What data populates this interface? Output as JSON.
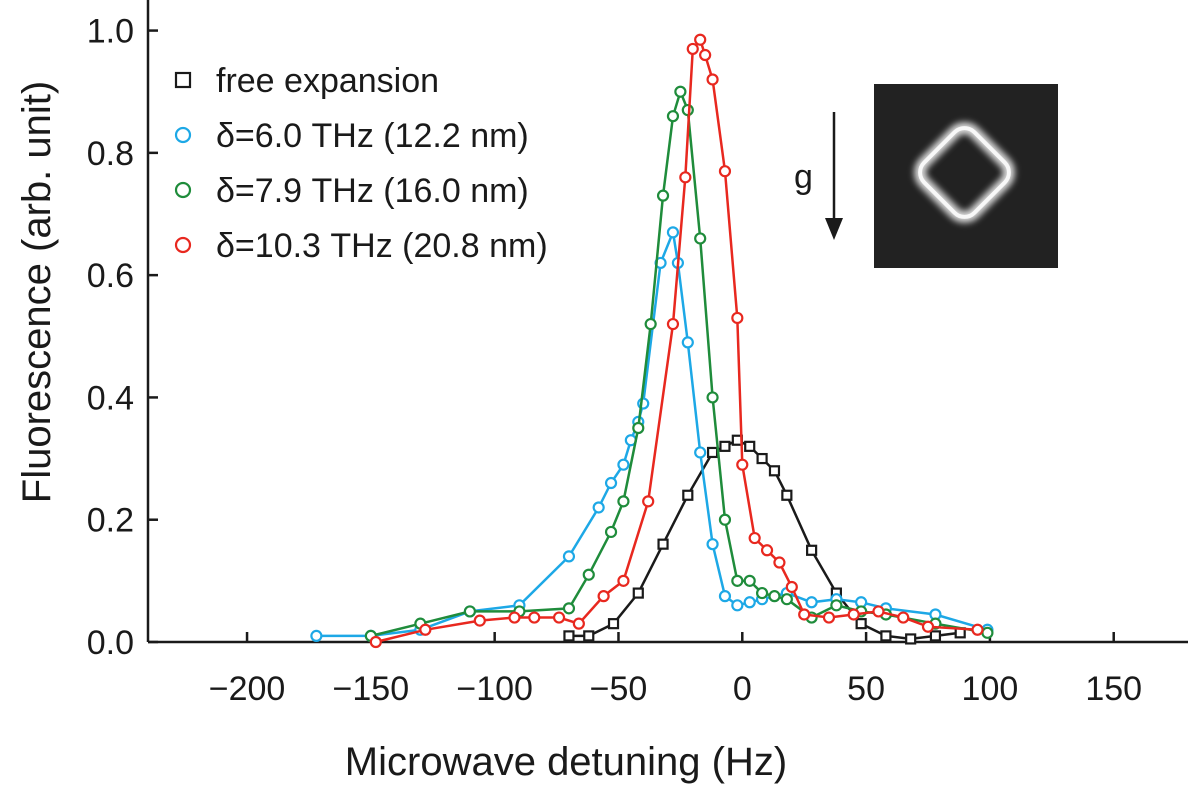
{
  "chart_data": {
    "type": "line",
    "xlabel": "Microwave detuning (Hz)",
    "ylabel": "Fluorescence (arb. unit)",
    "xlim": [
      -240,
      180
    ],
    "ylim": [
      0,
      1.05
    ],
    "x_ticks": [
      -200,
      -150,
      -100,
      -50,
      0,
      50,
      100,
      150
    ],
    "y_ticks": [
      0.0,
      0.2,
      0.4,
      0.6,
      0.8,
      1.0
    ],
    "x_tick_labels": [
      "−200",
      "−150",
      "−100",
      "−50",
      "0",
      "50",
      "100",
      "150"
    ],
    "y_tick_labels": [
      "0.0",
      "0.2",
      "0.4",
      "0.6",
      "0.8",
      "1.0"
    ],
    "legend_position": "top-left",
    "grid": false,
    "series": [
      {
        "name": "free expansion",
        "color": "#1a1a1a",
        "marker": "square",
        "points": [
          [
            -70,
            0.01
          ],
          [
            -62,
            0.01
          ],
          [
            -52,
            0.03
          ],
          [
            -42,
            0.08
          ],
          [
            -32,
            0.16
          ],
          [
            -22,
            0.24
          ],
          [
            -12,
            0.31
          ],
          [
            -7,
            0.32
          ],
          [
            -2,
            0.33
          ],
          [
            3,
            0.32
          ],
          [
            8,
            0.3
          ],
          [
            13,
            0.28
          ],
          [
            18,
            0.24
          ],
          [
            28,
            0.15
          ],
          [
            38,
            0.08
          ],
          [
            48,
            0.03
          ],
          [
            58,
            0.01
          ],
          [
            68,
            0.005
          ],
          [
            78,
            0.01
          ],
          [
            88,
            0.015
          ]
        ]
      },
      {
        "name": "δ=6.0 THz (12.2 nm)",
        "color": "#1da8e6",
        "marker": "circle",
        "points": [
          [
            -172,
            0.01
          ],
          [
            -150,
            0.01
          ],
          [
            -130,
            0.02
          ],
          [
            -110,
            0.05
          ],
          [
            -90,
            0.06
          ],
          [
            -70,
            0.14
          ],
          [
            -58,
            0.22
          ],
          [
            -53,
            0.26
          ],
          [
            -48,
            0.29
          ],
          [
            -45,
            0.33
          ],
          [
            -42,
            0.36
          ],
          [
            -40,
            0.39
          ],
          [
            -33,
            0.62
          ],
          [
            -28,
            0.67
          ],
          [
            -26,
            0.62
          ],
          [
            -22,
            0.49
          ],
          [
            -17,
            0.31
          ],
          [
            -12,
            0.16
          ],
          [
            -7,
            0.075
          ],
          [
            -2,
            0.06
          ],
          [
            3,
            0.065
          ],
          [
            8,
            0.07
          ],
          [
            18,
            0.08
          ],
          [
            28,
            0.065
          ],
          [
            38,
            0.07
          ],
          [
            48,
            0.065
          ],
          [
            58,
            0.055
          ],
          [
            78,
            0.045
          ],
          [
            99,
            0.02
          ]
        ]
      },
      {
        "name": "δ=7.9 THz (16.0 nm)",
        "color": "#1f8c3b",
        "marker": "circle",
        "points": [
          [
            -150,
            0.01
          ],
          [
            -130,
            0.03
          ],
          [
            -110,
            0.05
          ],
          [
            -90,
            0.05
          ],
          [
            -70,
            0.055
          ],
          [
            -62,
            0.11
          ],
          [
            -53,
            0.18
          ],
          [
            -48,
            0.23
          ],
          [
            -42,
            0.35
          ],
          [
            -37,
            0.52
          ],
          [
            -32,
            0.73
          ],
          [
            -28,
            0.86
          ],
          [
            -25,
            0.9
          ],
          [
            -22,
            0.87
          ],
          [
            -17,
            0.66
          ],
          [
            -12,
            0.4
          ],
          [
            -7,
            0.2
          ],
          [
            -2,
            0.1
          ],
          [
            3,
            0.1
          ],
          [
            8,
            0.08
          ],
          [
            13,
            0.075
          ],
          [
            18,
            0.07
          ],
          [
            28,
            0.04
          ],
          [
            38,
            0.06
          ],
          [
            48,
            0.05
          ],
          [
            58,
            0.045
          ],
          [
            78,
            0.03
          ],
          [
            99,
            0.015
          ]
        ]
      },
      {
        "name": "δ=10.3 THz (20.8 nm)",
        "color": "#e8281f",
        "marker": "circle",
        "points": [
          [
            -148,
            0.0
          ],
          [
            -128,
            0.02
          ],
          [
            -106,
            0.035
          ],
          [
            -92,
            0.04
          ],
          [
            -84,
            0.04
          ],
          [
            -74,
            0.04
          ],
          [
            -66,
            0.03
          ],
          [
            -56,
            0.075
          ],
          [
            -48,
            0.1
          ],
          [
            -38,
            0.23
          ],
          [
            -28,
            0.52
          ],
          [
            -23,
            0.76
          ],
          [
            -20,
            0.97
          ],
          [
            -17,
            0.985
          ],
          [
            -15,
            0.96
          ],
          [
            -12,
            0.92
          ],
          [
            -7,
            0.77
          ],
          [
            -2,
            0.53
          ],
          [
            0,
            0.29
          ],
          [
            5,
            0.17
          ],
          [
            10,
            0.15
          ],
          [
            15,
            0.13
          ],
          [
            20,
            0.09
          ],
          [
            25,
            0.045
          ],
          [
            35,
            0.04
          ],
          [
            45,
            0.045
          ],
          [
            55,
            0.05
          ],
          [
            65,
            0.04
          ],
          [
            75,
            0.025
          ],
          [
            95,
            0.02
          ]
        ]
      }
    ]
  },
  "inset": {
    "arrow_label": "g"
  }
}
